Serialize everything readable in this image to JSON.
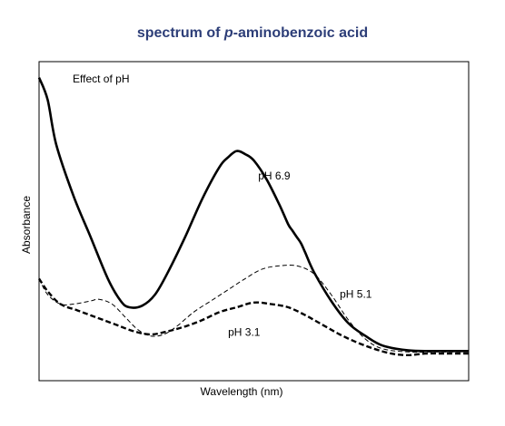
{
  "title": {
    "prefix": "spectrum of ",
    "italic": "p",
    "suffix": "-aminobenzoic acid"
  },
  "title_color": "#2d3e78",
  "chart_data": {
    "type": "line",
    "title": "spectrum of p-aminobenzoic acid",
    "annotation": "Effect of pH",
    "xlabel": "Wavelength (nm)",
    "ylabel": "Absorbance",
    "x_ticks": [],
    "y_ticks": [],
    "grid": false,
    "legend": "none (series labelled directly on curves)",
    "note": "Axes are unscaled; values below are relative (x: 0–100 across axis, y: 0–100 up axis).",
    "series": [
      {
        "name": "pH 6.9",
        "style": "solid-thick",
        "color": "#000000",
        "points": [
          [
            0,
            95
          ],
          [
            2,
            88
          ],
          [
            4,
            74
          ],
          [
            8,
            58
          ],
          [
            12,
            45
          ],
          [
            16,
            32
          ],
          [
            19,
            25
          ],
          [
            21,
            23
          ],
          [
            24,
            23.5
          ],
          [
            27,
            27
          ],
          [
            30,
            34
          ],
          [
            34,
            45
          ],
          [
            38,
            57
          ],
          [
            42,
            67
          ],
          [
            44,
            70
          ],
          [
            46,
            72
          ],
          [
            48,
            71
          ],
          [
            50,
            69
          ],
          [
            53,
            63
          ],
          [
            56,
            55
          ],
          [
            58,
            49
          ],
          [
            59,
            47
          ],
          [
            60,
            45
          ],
          [
            61,
            43
          ],
          [
            62,
            40
          ],
          [
            64,
            34
          ],
          [
            68,
            25
          ],
          [
            72,
            18
          ],
          [
            76,
            14
          ],
          [
            80,
            11
          ],
          [
            86,
            9.5
          ],
          [
            92,
            9.3
          ],
          [
            100,
            9.3
          ]
        ]
      },
      {
        "name": "pH 5.1",
        "style": "dashed-thin",
        "color": "#000000",
        "points": [
          [
            0,
            32
          ],
          [
            2,
            27
          ],
          [
            5,
            24
          ],
          [
            8,
            24
          ],
          [
            12,
            25
          ],
          [
            14,
            25.5
          ],
          [
            17,
            24
          ],
          [
            20,
            20
          ],
          [
            23,
            16
          ],
          [
            26,
            14
          ],
          [
            29,
            14.5
          ],
          [
            32,
            17
          ],
          [
            36,
            21.5
          ],
          [
            40,
            25
          ],
          [
            44,
            28.5
          ],
          [
            48,
            32
          ],
          [
            52,
            35
          ],
          [
            56,
            36
          ],
          [
            60,
            36
          ],
          [
            64,
            33.5
          ],
          [
            68,
            27
          ],
          [
            72,
            19
          ],
          [
            76,
            13
          ],
          [
            80,
            10
          ],
          [
            86,
            9
          ],
          [
            92,
            9
          ],
          [
            100,
            9
          ]
        ]
      },
      {
        "name": "pH 3.1",
        "style": "dashed-thick",
        "color": "#000000",
        "points": [
          [
            0,
            32
          ],
          [
            2,
            28
          ],
          [
            5,
            24
          ],
          [
            9,
            22
          ],
          [
            13,
            20
          ],
          [
            18,
            17.5
          ],
          [
            22,
            15.5
          ],
          [
            26,
            14.5
          ],
          [
            30,
            15.5
          ],
          [
            34,
            17
          ],
          [
            38,
            19
          ],
          [
            42,
            21.5
          ],
          [
            46,
            23
          ],
          [
            50,
            24.5
          ],
          [
            54,
            24
          ],
          [
            58,
            23
          ],
          [
            62,
            20.5
          ],
          [
            66,
            17.5
          ],
          [
            70,
            14.5
          ],
          [
            74,
            12
          ],
          [
            78,
            10
          ],
          [
            82,
            8.5
          ],
          [
            86,
            8
          ],
          [
            90,
            8.5
          ],
          [
            95,
            8.5
          ],
          [
            100,
            8.5
          ]
        ]
      }
    ]
  }
}
